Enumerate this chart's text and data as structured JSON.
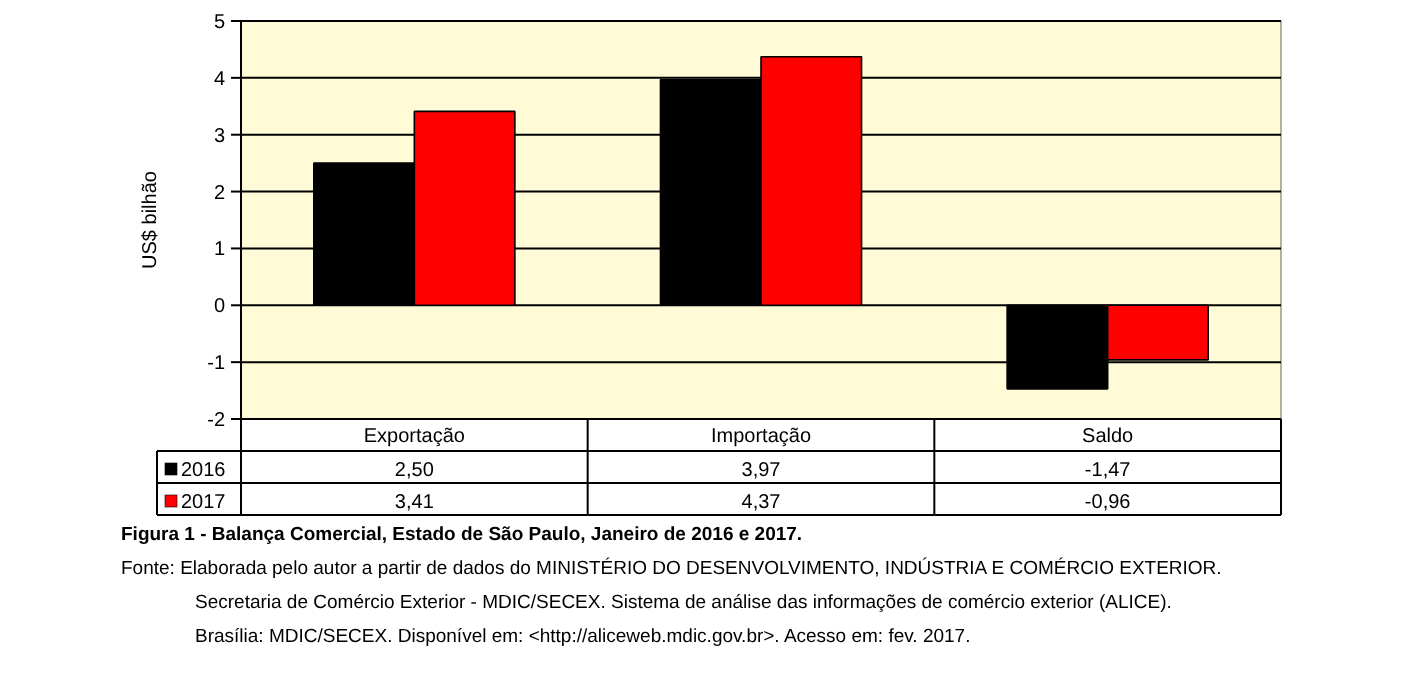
{
  "chart_data": {
    "type": "bar",
    "ylabel": "US$ bilhão",
    "categories": [
      "Exportação",
      "Importação",
      "Saldo"
    ],
    "series": [
      {
        "name": "2016",
        "color": "#000000",
        "values": [
          2.5,
          3.97,
          -1.47
        ],
        "value_labels": [
          "2,50",
          "3,97",
          "-1,47"
        ]
      },
      {
        "name": "2017",
        "color": "#ff0000",
        "values": [
          3.41,
          4.37,
          -0.96
        ],
        "value_labels": [
          "3,41",
          "4,37",
          "-0,96"
        ]
      }
    ],
    "ylim": [
      -2,
      5
    ],
    "yticks": [
      -2,
      -1,
      0,
      1,
      2,
      3,
      4,
      5
    ],
    "grid": "y",
    "legend": "bottom left",
    "annotations": [
      "Figura 1 - Balança Comercial, Estado de São Paulo, Janeiro de 2016 e 2017.",
      "Fonte: Elaborada pelo autor a partir de dados do MINISTÉRIO DO DESENVOLVIMENTO, INDÚSTRIA E COMÉRCIO EXTERIOR.",
      "Secretaria de Comércio Exterior - MDIC/SECEX. Sistema de análise das informações de comércio exterior (ALICE).",
      "Brasília: MDIC/SECEX. Disponível em: <http://aliceweb.mdic.gov.br>. Acesso em: fev. 2017."
    ]
  }
}
